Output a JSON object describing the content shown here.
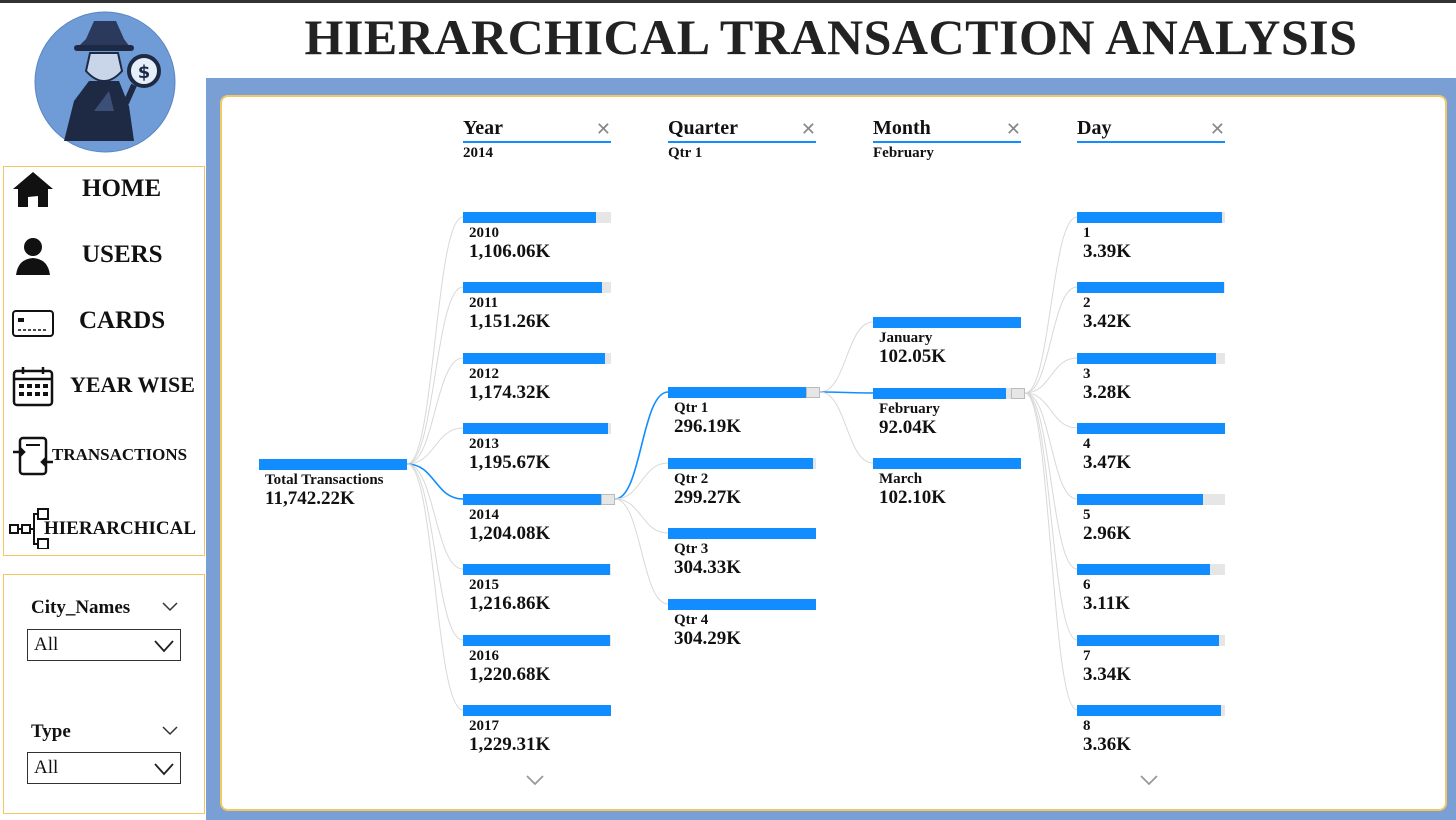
{
  "title": "HIERARCHICAL TRANSACTION ANALYSIS",
  "colors": {
    "accent": "#118dff",
    "frame": "#7a9fd4",
    "border": "#f3c766",
    "track": "#e6e6e6"
  },
  "nav": [
    {
      "label": "HOME",
      "icon": "home-icon"
    },
    {
      "label": "USERS",
      "icon": "user-icon"
    },
    {
      "label": "CARDS",
      "icon": "credit-card-icon"
    },
    {
      "label": "YEAR WISE",
      "icon": "calendar-icon"
    },
    {
      "label": "TRANSACTIONS",
      "icon": "transactions-icon"
    },
    {
      "label": "HIERARCHICAL",
      "icon": "hierarchy-icon"
    }
  ],
  "filters": [
    {
      "title": "City_Names",
      "value": "All"
    },
    {
      "title": "Type",
      "value": "All"
    }
  ],
  "tree": {
    "root": {
      "label": "Total Transactions",
      "value": "11,742.22K",
      "fraction": 1.0
    },
    "levels": [
      {
        "name": "Year",
        "selected": "2014",
        "nodes": [
          {
            "label": "2010",
            "value": "1,106.06K",
            "fraction": 0.9
          },
          {
            "label": "2011",
            "value": "1,151.26K",
            "fraction": 0.94
          },
          {
            "label": "2012",
            "value": "1,174.32K",
            "fraction": 0.96
          },
          {
            "label": "2013",
            "value": "1,195.67K",
            "fraction": 0.98
          },
          {
            "label": "2014",
            "value": "1,204.08K",
            "fraction": 0.98
          },
          {
            "label": "2015",
            "value": "1,216.86K",
            "fraction": 0.99
          },
          {
            "label": "2016",
            "value": "1,220.68K",
            "fraction": 0.99
          },
          {
            "label": "2017",
            "value": "1,229.31K",
            "fraction": 1.0
          }
        ]
      },
      {
        "name": "Quarter",
        "selected": "Qtr 1",
        "nodes": [
          {
            "label": "Qtr 1",
            "value": "296.19K",
            "fraction": 0.97
          },
          {
            "label": "Qtr 2",
            "value": "299.27K",
            "fraction": 0.98
          },
          {
            "label": "Qtr 3",
            "value": "304.33K",
            "fraction": 1.0
          },
          {
            "label": "Qtr 4",
            "value": "304.29K",
            "fraction": 1.0
          }
        ]
      },
      {
        "name": "Month",
        "selected": "February",
        "nodes": [
          {
            "label": "January",
            "value": "102.05K",
            "fraction": 1.0
          },
          {
            "label": "February",
            "value": "92.04K",
            "fraction": 0.9
          },
          {
            "label": "March",
            "value": "102.10K",
            "fraction": 1.0
          }
        ]
      },
      {
        "name": "Day",
        "selected": "",
        "nodes": [
          {
            "label": "1",
            "value": "3.39K",
            "fraction": 0.98
          },
          {
            "label": "2",
            "value": "3.42K",
            "fraction": 0.99
          },
          {
            "label": "3",
            "value": "3.28K",
            "fraction": 0.94
          },
          {
            "label": "4",
            "value": "3.47K",
            "fraction": 1.0
          },
          {
            "label": "5",
            "value": "2.96K",
            "fraction": 0.85
          },
          {
            "label": "6",
            "value": "3.11K",
            "fraction": 0.9
          },
          {
            "label": "7",
            "value": "3.34K",
            "fraction": 0.96
          },
          {
            "label": "8",
            "value": "3.36K",
            "fraction": 0.97
          }
        ]
      }
    ]
  }
}
